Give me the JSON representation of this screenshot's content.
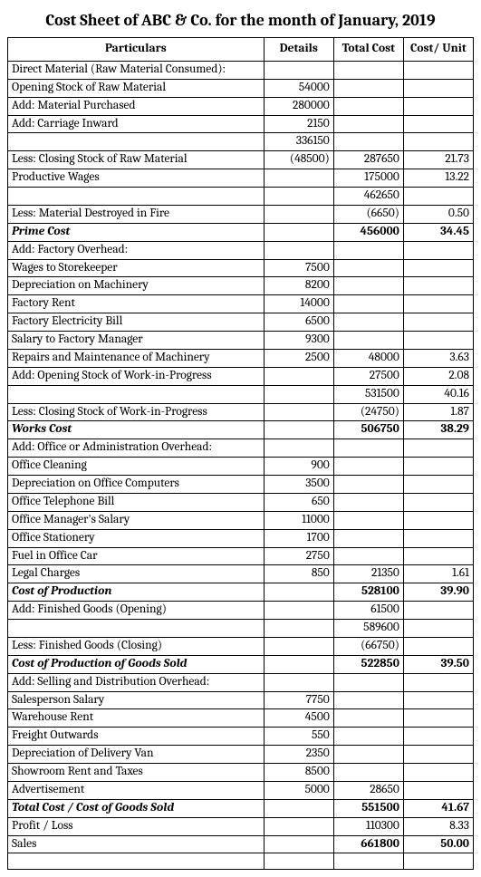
{
  "title": "Cost Sheet of ABC & Co. for the month of January, 2019",
  "headers": {
    "particulars": "Particulars",
    "details": "Details",
    "total_cost": "Total Cost",
    "cost_unit": "Cost/ Unit"
  },
  "rows": [
    {
      "p": "Direct Material (Raw Material Consumed):",
      "d": "",
      "t": "",
      "u": ""
    },
    {
      "p": "Opening Stock of Raw Material",
      "d": "54000",
      "t": "",
      "u": ""
    },
    {
      "p": "Add: Material Purchased",
      "d": "280000",
      "t": "",
      "u": ""
    },
    {
      "p": "Add: Carriage Inward",
      "d": "2150",
      "t": "",
      "u": ""
    },
    {
      "p": "",
      "d": "336150",
      "t": "",
      "u": ""
    },
    {
      "p": "Less: Closing Stock of Raw Material",
      "d": "(48500)",
      "t": "287650",
      "u": "21.73"
    },
    {
      "p": "Productive Wages",
      "d": "",
      "t": "175000",
      "u": "13.22"
    },
    {
      "p": "",
      "d": "",
      "t": "462650",
      "u": ""
    },
    {
      "p": "Less: Material Destroyed in Fire",
      "d": "",
      "t": "(6650)",
      "u": "0.50"
    },
    {
      "p": "Prime Cost",
      "d": "",
      "t": "456000",
      "u": "34.45",
      "bold": true,
      "italic": true,
      "boldRow": true
    },
    {
      "p": "Add: Factory Overhead:",
      "d": "",
      "t": "",
      "u": ""
    },
    {
      "p": "Wages to Storekeeper",
      "d": "7500",
      "t": "",
      "u": ""
    },
    {
      "p": "Depreciation on Machinery",
      "d": "8200",
      "t": "",
      "u": ""
    },
    {
      "p": "Factory Rent",
      "d": "14000",
      "t": "",
      "u": ""
    },
    {
      "p": "Factory Electricity Bill",
      "d": "6500",
      "t": "",
      "u": ""
    },
    {
      "p": "Salary to Factory Manager",
      "d": "9300",
      "t": "",
      "u": ""
    },
    {
      "p": "Repairs and Maintenance of Machinery",
      "d": "2500",
      "t": "48000",
      "u": "3.63"
    },
    {
      "p": "Add: Opening Stock of Work-in-Progress",
      "d": "",
      "t": "27500",
      "u": "2.08"
    },
    {
      "p": "",
      "d": "",
      "t": "531500",
      "u": "40.16"
    },
    {
      "p": "Less: Closing Stock of Work-in-Progress",
      "d": "",
      "t": "(24750)",
      "u": "1.87"
    },
    {
      "p": "Works Cost",
      "d": "",
      "t": "506750",
      "u": "38.29",
      "bold": true,
      "italic": true,
      "boldRow": true
    },
    {
      "p": "Add: Office or Administration Overhead:",
      "d": "",
      "t": "",
      "u": ""
    },
    {
      "p": "Office Cleaning",
      "d": "900",
      "t": "",
      "u": ""
    },
    {
      "p": "Depreciation on Office Computers",
      "d": "3500",
      "t": "",
      "u": ""
    },
    {
      "p": "Office Telephone Bill",
      "d": "650",
      "t": "",
      "u": ""
    },
    {
      "p": "Office Manager's Salary",
      "d": "11000",
      "t": "",
      "u": ""
    },
    {
      "p": "Office Stationery",
      "d": "1700",
      "t": "",
      "u": ""
    },
    {
      "p": "Fuel in Office Car",
      "d": "2750",
      "t": "",
      "u": ""
    },
    {
      "p": "Legal Charges",
      "d": "850",
      "t": "21350",
      "u": "1.61"
    },
    {
      "p": "Cost of Production",
      "d": "",
      "t": "528100",
      "u": "39.90",
      "bold": true,
      "italic": true,
      "boldRow": true
    },
    {
      "p": "Add: Finished Goods (Opening)",
      "d": "",
      "t": "61500",
      "u": ""
    },
    {
      "p": "",
      "d": "",
      "t": "589600",
      "u": ""
    },
    {
      "p": "Less: Finished Goods (Closing)",
      "d": "",
      "t": "(66750)",
      "u": ""
    },
    {
      "p": "Cost of Production of Goods Sold",
      "d": "",
      "t": "522850",
      "u": "39.50",
      "bold": true,
      "italic": true,
      "boldRow": true
    },
    {
      "p": "Add: Selling and Distribution Overhead:",
      "d": "",
      "t": "",
      "u": ""
    },
    {
      "p": "Salesperson Salary",
      "d": "7750",
      "t": "",
      "u": ""
    },
    {
      "p": "Warehouse Rent",
      "d": "4500",
      "t": "",
      "u": ""
    },
    {
      "p": "Freight Outwards",
      "d": "550",
      "t": "",
      "u": ""
    },
    {
      "p": "Depreciation of Delivery Van",
      "d": "2350",
      "t": "",
      "u": ""
    },
    {
      "p": "Showroom Rent and Taxes",
      "d": "8500",
      "t": "",
      "u": ""
    },
    {
      "p": "Advertisement",
      "d": "5000",
      "t": "28650",
      "u": ""
    },
    {
      "p": "Total Cost / Cost of Goods Sold",
      "d": "",
      "t": "551500",
      "u": "41.67",
      "bold": true,
      "italic": true,
      "boldRow": true
    },
    {
      "p": "Profit / Loss",
      "d": "",
      "t": "110300",
      "u": "8.33"
    },
    {
      "p": "Sales",
      "d": "",
      "t": "661800",
      "u": "50.00",
      "boldRow": true
    },
    {
      "p": "",
      "d": "",
      "t": "",
      "u": ""
    }
  ],
  "style": {
    "font_family": "Cambria, Georgia, serif",
    "title_fontsize": 18,
    "body_fontsize": 13.5,
    "border_color": "#000000",
    "background_color": "#ffffff",
    "text_color": "#000000"
  }
}
